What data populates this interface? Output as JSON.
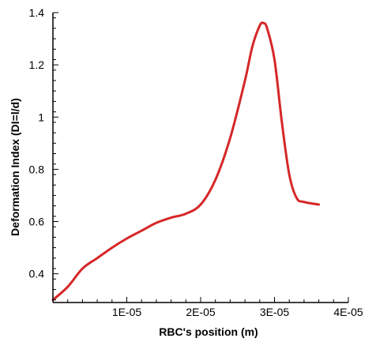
{
  "chart_data": {
    "type": "line",
    "title": "",
    "xlabel": "RBC's  position (m)",
    "ylabel": "Deformation Index (DI=l/d)",
    "xlim": [
      0,
      4e-05
    ],
    "ylim": [
      0.29,
      1.4
    ],
    "x_ticks": [
      1e-05,
      2e-05,
      3e-05,
      4e-05
    ],
    "x_tick_labels": [
      "1E-05",
      "2E-05",
      "3E-05",
      "4E-05"
    ],
    "y_ticks": [
      0.4,
      0.6,
      0.8,
      1.0,
      1.2,
      1.4
    ],
    "y_tick_labels": [
      "0.4",
      "0.6",
      "0.8",
      "1",
      "1.2",
      "1.4"
    ],
    "grid": false,
    "legend": "none",
    "series": [
      {
        "color": "#d62728",
        "x": [
          0,
          2e-06,
          4e-06,
          6e-06,
          8e-06,
          1e-05,
          1.2e-05,
          1.4e-05,
          1.6e-05,
          1.8e-05,
          2e-05,
          2.2e-05,
          2.4e-05,
          2.6e-05,
          2.7e-05,
          2.8e-05,
          2.85e-05,
          2.9e-05,
          3e-05,
          3.1e-05,
          3.2e-05,
          3.3e-05,
          3.4e-05,
          3.6e-05
        ],
        "y": [
          0.3,
          0.35,
          0.42,
          0.46,
          0.5,
          0.535,
          0.565,
          0.595,
          0.615,
          0.63,
          0.665,
          0.76,
          0.92,
          1.14,
          1.27,
          1.35,
          1.36,
          1.34,
          1.22,
          0.98,
          0.78,
          0.69,
          0.675,
          0.665
        ]
      }
    ]
  }
}
